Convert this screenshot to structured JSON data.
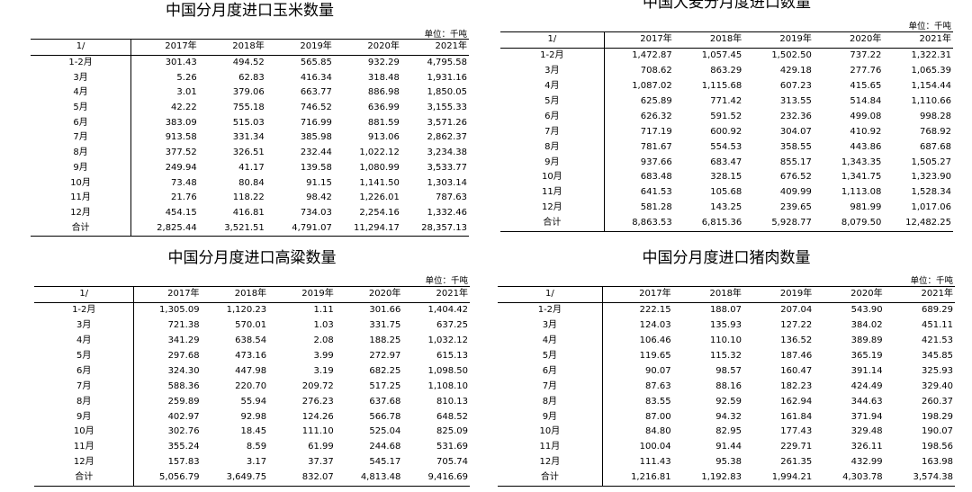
{
  "unit_label": "单位：千吨",
  "header": [
    "1/",
    "2017年",
    "2018年",
    "2019年",
    "2020年",
    "2021年"
  ],
  "months": [
    "1-2月",
    "3月",
    "4月",
    "5月",
    "6月",
    "7月",
    "8月",
    "9月",
    "10月",
    "11月",
    "12月",
    "合计"
  ],
  "tables": [
    {
      "title": "中国分月度进口玉米数量",
      "rows": [
        [
          "301.43",
          "494.52",
          "565.85",
          "932.29",
          "4,795.58"
        ],
        [
          "5.26",
          "62.83",
          "416.34",
          "318.48",
          "1,931.16"
        ],
        [
          "3.01",
          "379.06",
          "663.77",
          "886.98",
          "1,850.05"
        ],
        [
          "42.22",
          "755.18",
          "746.52",
          "636.99",
          "3,155.33"
        ],
        [
          "383.09",
          "515.03",
          "716.99",
          "881.59",
          "3,571.26"
        ],
        [
          "913.58",
          "331.34",
          "385.98",
          "913.06",
          "2,862.37"
        ],
        [
          "377.52",
          "326.51",
          "232.44",
          "1,022.12",
          "3,234.38"
        ],
        [
          "249.94",
          "41.17",
          "139.58",
          "1,080.99",
          "3,533.77"
        ],
        [
          "73.48",
          "80.84",
          "91.15",
          "1,141.50",
          "1,303.14"
        ],
        [
          "21.76",
          "118.22",
          "98.42",
          "1,226.01",
          "787.63"
        ],
        [
          "454.15",
          "416.81",
          "734.03",
          "2,254.16",
          "1,332.46"
        ],
        [
          "2,825.44",
          "3,521.51",
          "4,791.07",
          "11,294.17",
          "28,357.13"
        ]
      ]
    },
    {
      "title": "中国大麦分月度进口数量",
      "rows": [
        [
          "1,472.87",
          "1,057.45",
          "1,502.50",
          "737.22",
          "1,322.31"
        ],
        [
          "708.62",
          "863.29",
          "429.18",
          "277.76",
          "1,065.39"
        ],
        [
          "1,087.02",
          "1,115.68",
          "607.23",
          "415.65",
          "1,154.44"
        ],
        [
          "625.89",
          "771.42",
          "313.55",
          "514.84",
          "1,110.66"
        ],
        [
          "626.32",
          "591.52",
          "232.36",
          "499.08",
          "998.28"
        ],
        [
          "717.19",
          "600.92",
          "304.07",
          "410.92",
          "768.92"
        ],
        [
          "781.67",
          "554.53",
          "358.55",
          "443.86",
          "687.68"
        ],
        [
          "937.66",
          "683.47",
          "855.17",
          "1,343.35",
          "1,505.27"
        ],
        [
          "683.48",
          "328.15",
          "676.52",
          "1,341.75",
          "1,323.90"
        ],
        [
          "641.53",
          "105.68",
          "409.99",
          "1,113.08",
          "1,528.34"
        ],
        [
          "581.28",
          "143.25",
          "239.65",
          "981.99",
          "1,017.06"
        ],
        [
          "8,863.53",
          "6,815.36",
          "5,928.77",
          "8,079.50",
          "12,482.25"
        ]
      ]
    },
    {
      "title": "中国分月度进口高粱数量",
      "rows": [
        [
          "1,305.09",
          "1,120.23",
          "1.11",
          "301.66",
          "1,404.42"
        ],
        [
          "721.38",
          "570.01",
          "1.03",
          "331.75",
          "637.25"
        ],
        [
          "341.29",
          "638.54",
          "2.08",
          "188.25",
          "1,032.12"
        ],
        [
          "297.68",
          "473.16",
          "3.99",
          "272.97",
          "615.13"
        ],
        [
          "324.30",
          "447.98",
          "3.19",
          "682.25",
          "1,098.50"
        ],
        [
          "588.36",
          "220.70",
          "209.72",
          "517.25",
          "1,108.10"
        ],
        [
          "259.89",
          "55.94",
          "276.23",
          "637.68",
          "810.13"
        ],
        [
          "402.97",
          "92.98",
          "124.26",
          "566.78",
          "648.52"
        ],
        [
          "302.76",
          "18.45",
          "111.10",
          "525.04",
          "825.09"
        ],
        [
          "355.24",
          "8.59",
          "61.99",
          "244.68",
          "531.69"
        ],
        [
          "157.83",
          "3.17",
          "37.37",
          "545.17",
          "705.74"
        ],
        [
          "5,056.79",
          "3,649.75",
          "832.07",
          "4,813.48",
          "9,416.69"
        ]
      ]
    },
    {
      "title": "中国分月度进口猪肉数量",
      "rows": [
        [
          "222.15",
          "188.07",
          "207.04",
          "543.90",
          "689.29"
        ],
        [
          "124.03",
          "135.93",
          "127.22",
          "384.02",
          "451.11"
        ],
        [
          "106.46",
          "110.10",
          "136.52",
          "389.89",
          "421.53"
        ],
        [
          "119.65",
          "115.32",
          "187.46",
          "365.19",
          "345.85"
        ],
        [
          "90.07",
          "98.57",
          "160.47",
          "391.14",
          "325.93"
        ],
        [
          "87.63",
          "88.16",
          "182.23",
          "424.49",
          "329.40"
        ],
        [
          "83.55",
          "92.59",
          "162.94",
          "344.63",
          "260.37"
        ],
        [
          "87.00",
          "94.32",
          "161.84",
          "371.94",
          "198.29"
        ],
        [
          "84.80",
          "82.95",
          "177.43",
          "329.48",
          "190.07"
        ],
        [
          "100.04",
          "91.44",
          "229.71",
          "326.11",
          "198.56"
        ],
        [
          "111.43",
          "95.38",
          "261.35",
          "432.99",
          "163.98"
        ],
        [
          "1,216.81",
          "1,192.83",
          "1,994.21",
          "4,303.78",
          "3,574.38"
        ]
      ]
    }
  ]
}
